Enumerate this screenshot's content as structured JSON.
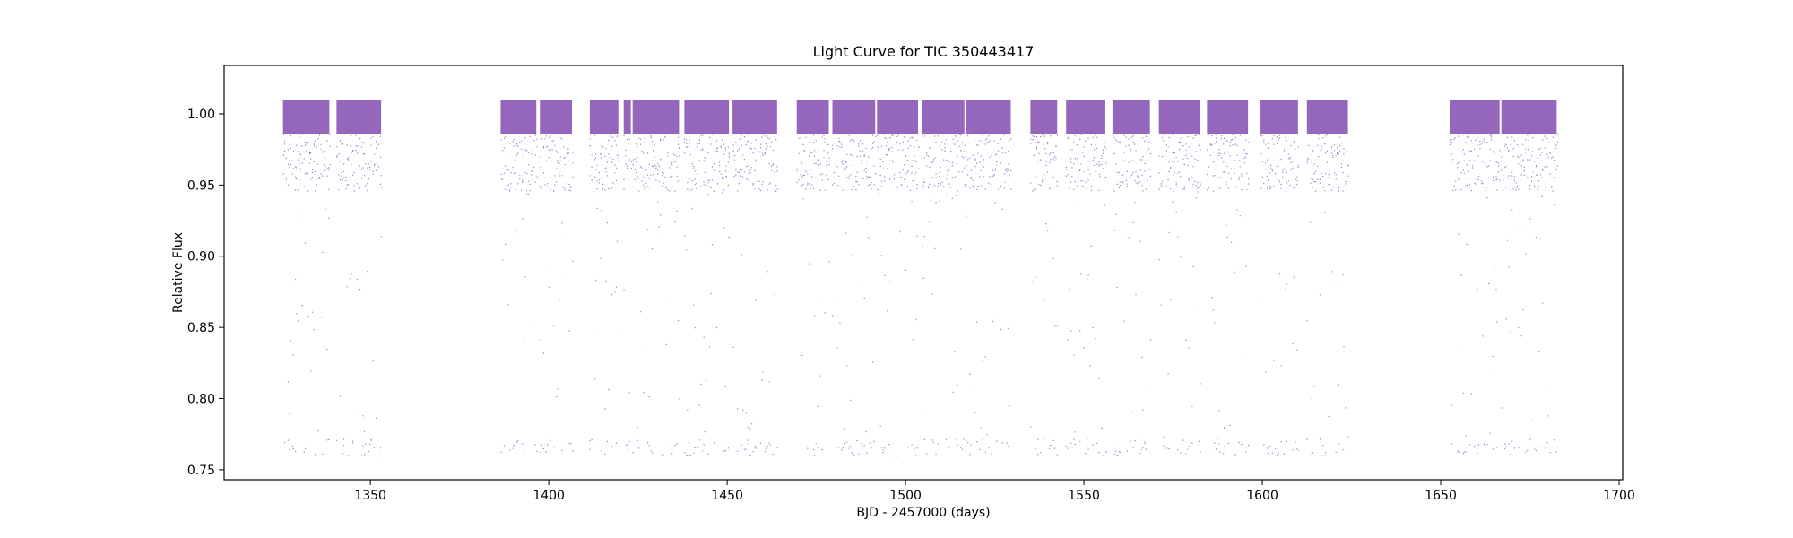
{
  "chart_data": {
    "type": "scatter",
    "title": "Light Curve for TIC 350443417",
    "xlabel": "BJD - 2457000 (days)",
    "ylabel": "Relative Flux",
    "xlim": [
      1309,
      1701
    ],
    "ylim": [
      0.743,
      1.034
    ],
    "xticks": [
      1350,
      1400,
      1450,
      1500,
      1550,
      1600,
      1650,
      1700
    ],
    "xtick_labels": [
      "1350",
      "1400",
      "1450",
      "1500",
      "1550",
      "1600",
      "1650",
      "1700"
    ],
    "yticks": [
      0.75,
      0.8,
      0.85,
      0.9,
      0.95,
      1.0
    ],
    "ytick_labels": [
      "0.75",
      "0.80",
      "0.85",
      "0.90",
      "0.95",
      "1.00"
    ],
    "grid": false,
    "legend": false,
    "marker_color": "#9467bd",
    "series": [
      {
        "points_note": "eclipse-dominated flux: out-of-eclipse baseline ~1.00 (scatter 0.985-1.01), eclipse depths reach ~0.76",
        "baseline": 1.0,
        "min_flux": 0.76,
        "segments": [
          [
            1325.5,
            1338.5
          ],
          [
            1340.5,
            1353.0
          ],
          [
            1386.5,
            1396.5
          ],
          [
            1397.5,
            1406.5
          ],
          [
            1411.5,
            1419.5
          ],
          [
            1421.0,
            1423.0
          ],
          [
            1423.5,
            1436.5
          ],
          [
            1438.0,
            1450.5
          ],
          [
            1451.5,
            1464.0
          ],
          [
            1469.5,
            1478.5
          ],
          [
            1479.5,
            1491.5
          ],
          [
            1492.0,
            1503.5
          ],
          [
            1504.5,
            1516.5
          ],
          [
            1517.0,
            1529.5
          ],
          [
            1535.0,
            1542.5
          ],
          [
            1545.0,
            1556.0
          ],
          [
            1558.0,
            1568.5
          ],
          [
            1571.0,
            1582.5
          ],
          [
            1584.5,
            1596.0
          ],
          [
            1599.5,
            1610.0
          ],
          [
            1612.5,
            1624.0
          ],
          [
            1652.5,
            1666.5
          ],
          [
            1667.0,
            1682.5
          ]
        ]
      }
    ]
  }
}
